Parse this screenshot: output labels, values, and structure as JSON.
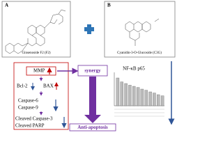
{
  "panel_a": {
    "letter": "A",
    "label": "Ginsenoside F2 (F2)"
  },
  "panel_b": {
    "letter": "B",
    "label": "Cyanidin-3-O-Glucoside (C3G)"
  },
  "synergy": "synergy",
  "markers": {
    "mmp": "MMP",
    "bcl2": "Bcl-2",
    "bax": "BAX",
    "caspase6": "Caspase-6",
    "caspase9": "Caspase-9",
    "cleaved_caspase3": "Cleaved Caspase-3",
    "cleaved_parp": "Cleaved PARP"
  },
  "outcome": "Anti-apoptosis",
  "nfkb_chart": {
    "title": "NF-κB p65",
    "values": [
      1.0,
      0.86,
      0.8,
      0.74,
      0.7,
      0.66,
      0.6,
      0.56,
      0.5,
      0.46,
      0.4,
      0.36
    ],
    "ylim": [
      0,
      1.2
    ],
    "color": "#bbbbbb"
  }
}
